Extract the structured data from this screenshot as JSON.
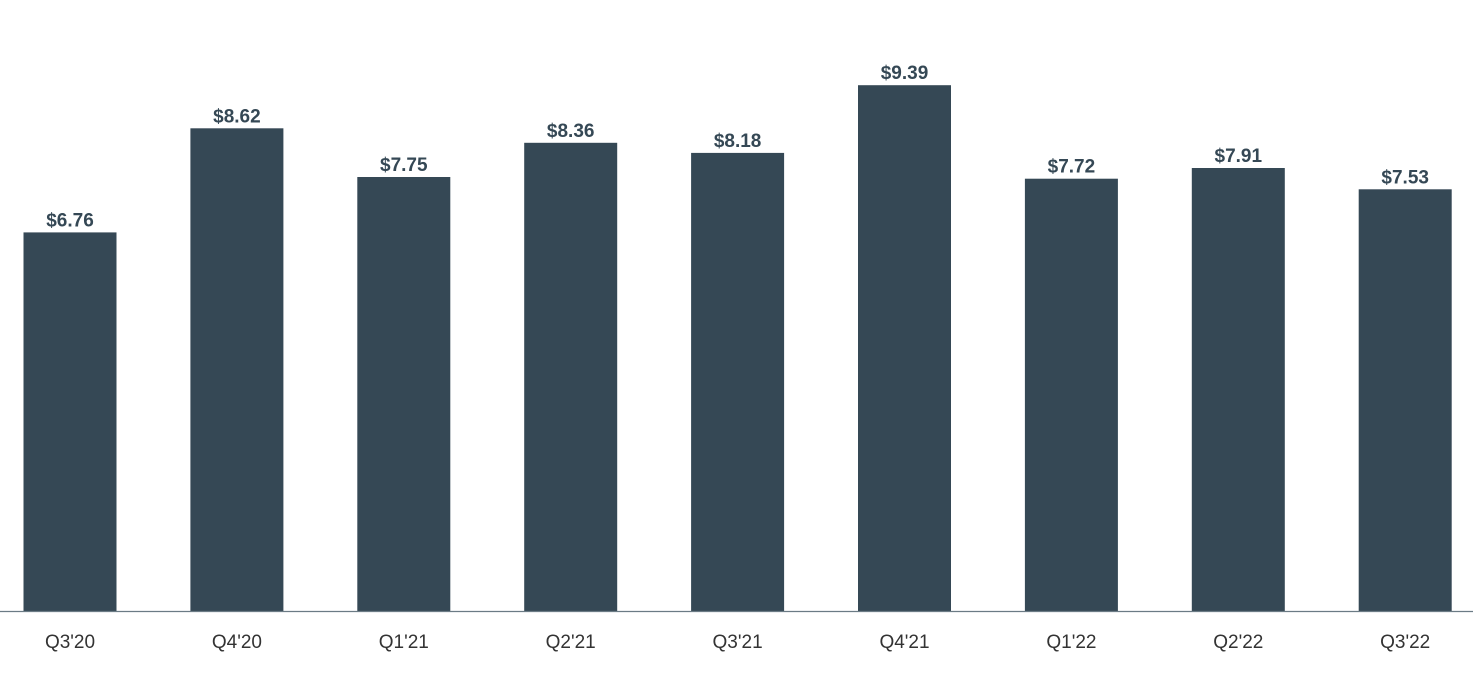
{
  "chart_data": {
    "type": "bar",
    "categories": [
      "Q3'20",
      "Q4'20",
      "Q1'21",
      "Q2'21",
      "Q3'21",
      "Q4'21",
      "Q1'22",
      "Q2'22",
      "Q3'22"
    ],
    "values": [
      6.76,
      8.62,
      7.75,
      8.36,
      8.18,
      9.39,
      7.72,
      7.91,
      7.53
    ],
    "data_labels": [
      "$6.76",
      "$8.62",
      "$7.75",
      "$8.36",
      "$8.18",
      "$9.39",
      "$7.72",
      "$7.91",
      "$7.53"
    ],
    "title": "",
    "xlabel": "",
    "ylabel": "",
    "ylim": [
      0,
      10
    ],
    "grid": false,
    "legend": "none",
    "colors": {
      "bar": "#354855",
      "data_label": "#354855",
      "axis": "#6b7b85"
    }
  }
}
